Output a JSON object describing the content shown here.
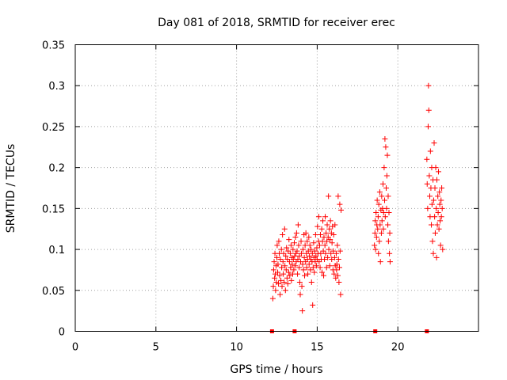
{
  "chart_data": {
    "type": "scatter",
    "title": "Day 081 of 2018, SRMTID for receiver erec",
    "xlabel": "GPS time / hours",
    "ylabel": "SRMTID / TECUs",
    "xlim": [
      0,
      25
    ],
    "ylim": [
      0,
      0.35
    ],
    "grid": true,
    "grid_style": "dotted",
    "marker": "+",
    "colors": {
      "points": "#ff0000",
      "grid": "#a0a0a0",
      "axis": "#000000"
    },
    "x_ticks": [
      {
        "value": 0,
        "label": "0"
      },
      {
        "value": 5,
        "label": "5"
      },
      {
        "value": 10,
        "label": "10"
      },
      {
        "value": 15,
        "label": "15"
      },
      {
        "value": 20,
        "label": "20"
      }
    ],
    "y_ticks": [
      {
        "value": 0,
        "label": "0"
      },
      {
        "value": 0.05,
        "label": "0.05"
      },
      {
        "value": 0.1,
        "label": "0.1"
      },
      {
        "value": 0.15,
        "label": "0.15"
      },
      {
        "value": 0.2,
        "label": "0.2"
      },
      {
        "value": 0.25,
        "label": "0.25"
      },
      {
        "value": 0.3,
        "label": "0.3"
      },
      {
        "value": 0.35,
        "label": "0.35"
      }
    ],
    "baseline_markers": [
      {
        "x": 12.2,
        "y": 0
      },
      {
        "x": 13.6,
        "y": 0
      },
      {
        "x": 18.6,
        "y": 0
      },
      {
        "x": 21.8,
        "y": 0
      }
    ],
    "series": [
      {
        "name": "SRMTID",
        "points": [
          [
            12.25,
            0.04
          ],
          [
            12.28,
            0.055
          ],
          [
            12.3,
            0.075
          ],
          [
            12.33,
            0.085
          ],
          [
            12.36,
            0.065
          ],
          [
            12.38,
            0.095
          ],
          [
            12.4,
            0.07
          ],
          [
            12.42,
            0.05
          ],
          [
            12.45,
            0.08
          ],
          [
            12.47,
            0.06
          ],
          [
            12.5,
            0.09
          ],
          [
            12.52,
            0.105
          ],
          [
            12.55,
            0.072
          ],
          [
            12.57,
            0.082
          ],
          [
            12.6,
            0.058
          ],
          [
            12.62,
            0.11
          ],
          [
            12.65,
            0.095
          ],
          [
            12.67,
            0.068
          ],
          [
            12.7,
            0.045
          ],
          [
            12.72,
            0.088
          ],
          [
            12.75,
            0.062
          ],
          [
            12.78,
            0.1
          ],
          [
            12.8,
            0.078
          ],
          [
            12.82,
            0.055
          ],
          [
            12.85,
            0.118
          ],
          [
            12.88,
            0.085
          ],
          [
            12.9,
            0.07
          ],
          [
            12.92,
            0.095
          ],
          [
            12.95,
            0.06
          ],
          [
            12.98,
            0.125
          ],
          [
            13.0,
            0.08
          ],
          [
            13.03,
            0.05
          ],
          [
            13.05,
            0.092
          ],
          [
            13.08,
            0.075
          ],
          [
            13.1,
            0.102
          ],
          [
            13.13,
            0.065
          ],
          [
            13.15,
            0.088
          ],
          [
            13.18,
            0.058
          ],
          [
            13.2,
            0.098
          ],
          [
            13.23,
            0.072
          ],
          [
            13.25,
            0.112
          ],
          [
            13.28,
            0.085
          ],
          [
            13.3,
            0.068
          ],
          [
            13.33,
            0.095
          ],
          [
            13.35,
            0.078
          ],
          [
            13.38,
            0.105
          ],
          [
            13.4,
            0.062
          ],
          [
            13.43,
            0.09
          ],
          [
            13.45,
            0.082
          ],
          [
            13.48,
            0.07
          ],
          [
            13.5,
            0.1
          ],
          [
            13.52,
            0.088
          ],
          [
            13.55,
            0.075
          ],
          [
            13.58,
            0.108
          ],
          [
            13.6,
            0.092
          ],
          [
            13.63,
            0.08
          ],
          [
            13.65,
            0.115
          ],
          [
            13.68,
            0.095
          ],
          [
            13.7,
            0.085
          ],
          [
            13.72,
            0.12
          ],
          [
            13.75,
            0.098
          ],
          [
            13.78,
            0.07
          ],
          [
            13.8,
            0.088
          ],
          [
            13.82,
            0.13
          ],
          [
            13.85,
            0.105
          ],
          [
            13.88,
            0.078
          ],
          [
            13.9,
            0.092
          ],
          [
            13.92,
            0.06
          ],
          [
            13.95,
            0.045
          ],
          [
            13.97,
            0.085
          ],
          [
            14.0,
            0.11
          ],
          [
            14.02,
            0.095
          ],
          [
            14.05,
            0.055
          ],
          [
            14.08,
            0.025
          ],
          [
            14.1,
            0.082
          ],
          [
            14.12,
            0.1
          ],
          [
            14.15,
            0.075
          ],
          [
            14.18,
            0.118
          ],
          [
            14.2,
            0.09
          ],
          [
            14.22,
            0.068
          ],
          [
            14.25,
            0.105
          ],
          [
            14.28,
            0.085
          ],
          [
            14.3,
            0.12
          ],
          [
            14.33,
            0.095
          ],
          [
            14.35,
            0.078
          ],
          [
            14.38,
            0.11
          ],
          [
            14.4,
            0.088
          ],
          [
            14.42,
            0.07
          ],
          [
            14.45,
            0.098
          ],
          [
            14.48,
            0.115
          ],
          [
            14.5,
            0.082
          ],
          [
            14.52,
            0.092
          ],
          [
            14.55,
            0.105
          ],
          [
            14.58,
            0.075
          ],
          [
            14.6,
            0.088
          ],
          [
            14.62,
            0.1
          ],
          [
            14.65,
            0.06
          ],
          [
            14.68,
            0.085
          ],
          [
            14.7,
            0.095
          ],
          [
            14.72,
            0.032
          ],
          [
            14.75,
            0.078
          ],
          [
            14.78,
            0.108
          ],
          [
            14.8,
            0.09
          ],
          [
            14.82,
            0.072
          ],
          [
            14.85,
            0.098
          ],
          [
            14.88,
            0.085
          ],
          [
            14.9,
            0.118
          ],
          [
            14.92,
            0.092
          ],
          [
            14.95,
            0.08
          ],
          [
            14.98,
            0.102
          ],
          [
            15.0,
            0.088
          ],
          [
            15.02,
            0.128
          ],
          [
            15.05,
            0.095
          ],
          [
            15.08,
            0.11
          ],
          [
            15.1,
            0.14
          ],
          [
            15.12,
            0.085
          ],
          [
            15.15,
            0.105
          ],
          [
            15.18,
            0.078
          ],
          [
            15.2,
            0.118
          ],
          [
            15.22,
            0.095
          ],
          [
            15.25,
            0.088
          ],
          [
            15.28,
            0.125
          ],
          [
            15.3,
            0.072
          ],
          [
            15.33,
            0.11
          ],
          [
            15.35,
            0.135
          ],
          [
            15.38,
            0.098
          ],
          [
            15.4,
            0.068
          ],
          [
            15.42,
            0.115
          ],
          [
            15.45,
            0.088
          ],
          [
            15.48,
            0.105
          ],
          [
            15.5,
            0.14
          ],
          [
            15.52,
            0.095
          ],
          [
            15.55,
            0.12
          ],
          [
            15.58,
            0.078
          ],
          [
            15.6,
            0.11
          ],
          [
            15.62,
            0.13
          ],
          [
            15.65,
            0.09
          ],
          [
            15.68,
            0.115
          ],
          [
            15.7,
            0.165
          ],
          [
            15.72,
            0.1
          ],
          [
            15.75,
            0.125
          ],
          [
            15.78,
            0.08
          ],
          [
            15.8,
            0.112
          ],
          [
            15.82,
            0.135
          ],
          [
            15.85,
            0.095
          ],
          [
            15.88,
            0.12
          ],
          [
            15.9,
            0.088
          ],
          [
            15.92,
            0.108
          ],
          [
            15.95,
            0.128
          ],
          [
            15.98,
            0.075
          ],
          [
            16.0,
            0.098
          ],
          [
            16.02,
            0.118
          ],
          [
            16.05,
            0.07
          ],
          [
            16.08,
            0.09
          ],
          [
            16.1,
            0.13
          ],
          [
            16.12,
            0.08
          ],
          [
            16.15,
            0.065
          ],
          [
            16.18,
            0.095
          ],
          [
            16.2,
            0.075
          ],
          [
            16.22,
            0.082
          ],
          [
            16.25,
            0.105
          ],
          [
            16.28,
            0.068
          ],
          [
            16.3,
            0.165
          ],
          [
            16.32,
            0.088
          ],
          [
            16.35,
            0.06
          ],
          [
            16.38,
            0.078
          ],
          [
            16.4,
            0.155
          ],
          [
            16.42,
            0.098
          ],
          [
            16.45,
            0.045
          ],
          [
            16.48,
            0.148
          ],
          [
            18.55,
            0.105
          ],
          [
            18.58,
            0.12
          ],
          [
            18.6,
            0.135
          ],
          [
            18.62,
            0.1
          ],
          [
            18.65,
            0.145
          ],
          [
            18.68,
            0.115
          ],
          [
            18.7,
            0.13
          ],
          [
            18.72,
            0.16
          ],
          [
            18.75,
            0.125
          ],
          [
            18.78,
            0.14
          ],
          [
            18.8,
            0.095
          ],
          [
            18.82,
            0.155
          ],
          [
            18.85,
            0.11
          ],
          [
            18.88,
            0.17
          ],
          [
            18.9,
            0.13
          ],
          [
            18.92,
            0.085
          ],
          [
            18.95,
            0.148
          ],
          [
            18.98,
            0.12
          ],
          [
            19.0,
            0.165
          ],
          [
            19.02,
            0.135
          ],
          [
            19.05,
            0.15
          ],
          [
            19.08,
            0.18
          ],
          [
            19.1,
            0.125
          ],
          [
            19.12,
            0.145
          ],
          [
            19.15,
            0.2
          ],
          [
            19.18,
            0.16
          ],
          [
            19.2,
            0.235
          ],
          [
            19.22,
            0.14
          ],
          [
            19.25,
            0.225
          ],
          [
            19.28,
            0.175
          ],
          [
            19.3,
            0.15
          ],
          [
            19.32,
            0.19
          ],
          [
            19.35,
            0.215
          ],
          [
            19.38,
            0.13
          ],
          [
            19.4,
            0.165
          ],
          [
            19.42,
            0.11
          ],
          [
            19.45,
            0.145
          ],
          [
            19.48,
            0.095
          ],
          [
            19.5,
            0.12
          ],
          [
            19.52,
            0.085
          ],
          [
            21.8,
            0.21
          ],
          [
            21.82,
            0.18
          ],
          [
            21.85,
            0.15
          ],
          [
            21.88,
            0.25
          ],
          [
            21.9,
            0.3
          ],
          [
            21.92,
            0.27
          ],
          [
            21.95,
            0.19
          ],
          [
            21.98,
            0.165
          ],
          [
            22.0,
            0.14
          ],
          [
            22.02,
            0.22
          ],
          [
            22.05,
            0.175
          ],
          [
            22.08,
            0.13
          ],
          [
            22.1,
            0.2
          ],
          [
            22.12,
            0.155
          ],
          [
            22.15,
            0.11
          ],
          [
            22.18,
            0.185
          ],
          [
            22.2,
            0.095
          ],
          [
            22.22,
            0.16
          ],
          [
            22.25,
            0.23
          ],
          [
            22.28,
            0.14
          ],
          [
            22.3,
            0.175
          ],
          [
            22.32,
            0.12
          ],
          [
            22.35,
            0.2
          ],
          [
            22.38,
            0.15
          ],
          [
            22.4,
            0.09
          ],
          [
            22.42,
            0.185
          ],
          [
            22.45,
            0.13
          ],
          [
            22.48,
            0.165
          ],
          [
            22.5,
            0.145
          ],
          [
            22.52,
            0.195
          ],
          [
            22.55,
            0.125
          ],
          [
            22.58,
            0.17
          ],
          [
            22.6,
            0.155
          ],
          [
            22.62,
            0.135
          ],
          [
            22.65,
            0.105
          ],
          [
            22.68,
            0.16
          ],
          [
            22.7,
            0.14
          ],
          [
            22.72,
            0.175
          ],
          [
            22.75,
            0.15
          ],
          [
            22.78,
            0.1
          ]
        ]
      }
    ]
  }
}
